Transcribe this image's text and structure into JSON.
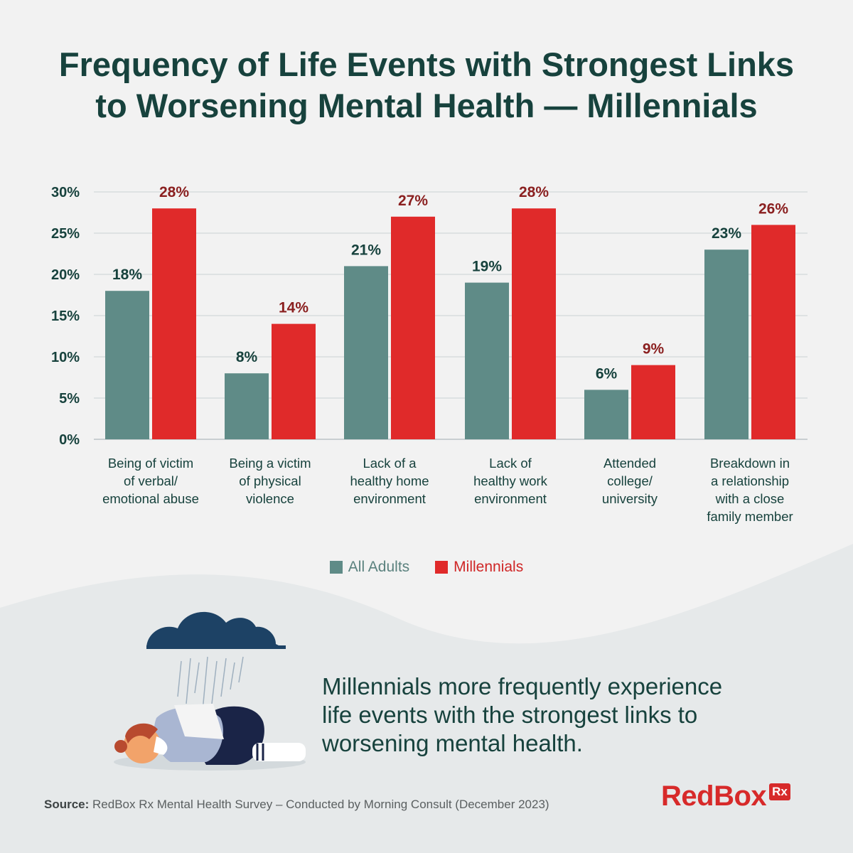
{
  "title_lines": [
    "Frequency of Life Events with Strongest Links",
    "to Worsening Mental Health — Millennials"
  ],
  "colors": {
    "all_adults": "#5f8b87",
    "millennials": "#e02a2a",
    "title": "#17423d",
    "millennials_label": "#8a1f1f"
  },
  "chart_data": {
    "type": "bar",
    "categories": [
      [
        "Being of victim",
        "of verbal/",
        "emotional abuse"
      ],
      [
        "Being a victim",
        "of physical",
        "violence"
      ],
      [
        "Lack of a",
        "healthy home",
        "environment"
      ],
      [
        "Lack of",
        "healthy work",
        "environment"
      ],
      [
        "Attended",
        "college/",
        "university"
      ],
      [
        "Breakdown in",
        "a relationship",
        "with a close",
        "family member"
      ]
    ],
    "series": [
      {
        "name": "All Adults",
        "values": [
          18,
          8,
          21,
          19,
          6,
          23
        ],
        "labels": [
          "18%",
          "8%",
          "21%",
          "19%",
          "6%",
          "23%"
        ]
      },
      {
        "name": "Millennials",
        "values": [
          28,
          14,
          27,
          28,
          9,
          26
        ],
        "labels": [
          "28%",
          "14%",
          "27%",
          "28%",
          "9%",
          "26%"
        ]
      }
    ],
    "y_ticks": [
      "0%",
      "5%",
      "10%",
      "15%",
      "20%",
      "25%",
      "30%"
    ],
    "y_tick_values": [
      0,
      5,
      10,
      15,
      20,
      25,
      30
    ],
    "ylim": [
      0,
      30
    ],
    "grid": true,
    "legend_position": "bottom-center"
  },
  "legend": {
    "all_adults": "All Adults",
    "millennials": "Millennials"
  },
  "caption_lines": [
    "Millennials more frequently experience",
    "life events with the strongest links to",
    "worsening mental health."
  ],
  "source": {
    "label": "Source:",
    "text": "RedBox Rx Mental Health Survey – Conducted by Morning Consult (December 2023)"
  },
  "logo": {
    "text": "RedBox",
    "badge": "Rx"
  }
}
